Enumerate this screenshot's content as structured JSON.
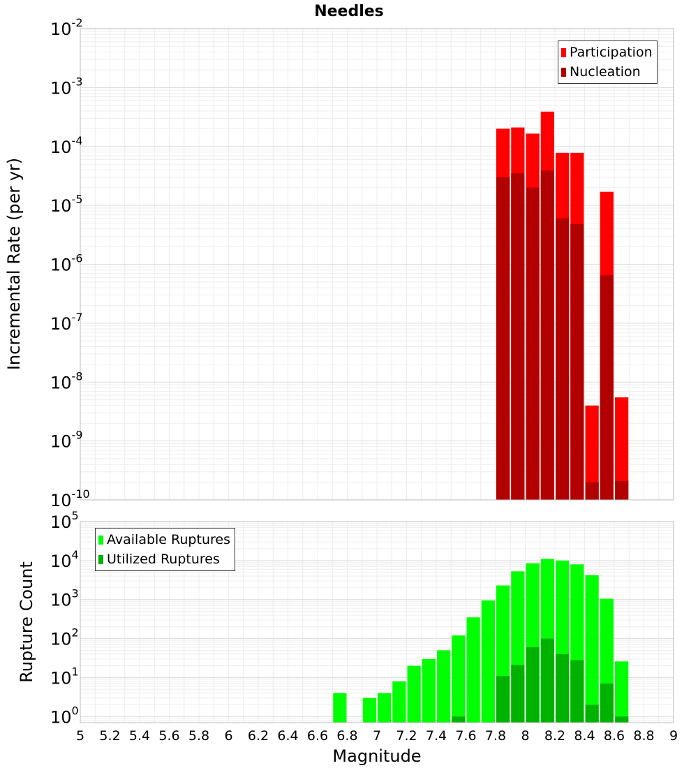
{
  "chart_data": [
    {
      "type": "bar",
      "title": "Needles",
      "ylabel": "Incremental Rate (per yr)",
      "xlabel": "",
      "xlim": [
        5,
        9
      ],
      "ylim": [
        1e-10,
        0.01
      ],
      "yscale": "log",
      "grid": true,
      "legend_position": "top-right",
      "bin_width": 0.1,
      "x": [
        7.85,
        7.95,
        8.05,
        8.15,
        8.25,
        8.35,
        8.45,
        8.55,
        8.65
      ],
      "series": [
        {
          "name": "Participation",
          "color": "#ff0000",
          "values": [
            0.0002,
            0.00021,
            0.000165,
            0.00039,
            7.8e-05,
            7.8e-05,
            4e-09,
            1.7e-05,
            5.5e-09
          ]
        },
        {
          "name": "Nucleation",
          "color": "#b20000",
          "values": [
            3e-05,
            3.5e-05,
            2e-05,
            3.9e-05,
            6e-06,
            4.8e-06,
            2e-10,
            6.5e-07,
            2.1e-10
          ]
        }
      ],
      "yticks": [
        {
          "label": "10",
          "exp": "-2"
        },
        {
          "label": "10",
          "exp": "-3"
        },
        {
          "label": "10",
          "exp": "-4"
        },
        {
          "label": "10",
          "exp": "-5"
        },
        {
          "label": "10",
          "exp": "-6"
        },
        {
          "label": "10",
          "exp": "-7"
        },
        {
          "label": "10",
          "exp": "-8"
        },
        {
          "label": "10",
          "exp": "-9"
        },
        {
          "label": "10",
          "exp": "-10"
        }
      ]
    },
    {
      "type": "bar",
      "title": "",
      "ylabel": "Rupture Count",
      "xlabel": "Magnitude",
      "xlim": [
        5,
        9
      ],
      "ylim": [
        0.7,
        100000.0
      ],
      "yscale": "log",
      "grid": true,
      "legend_position": "top-left",
      "bin_width": 0.1,
      "x": [
        6.75,
        6.95,
        7.05,
        7.15,
        7.25,
        7.35,
        7.45,
        7.55,
        7.65,
        7.75,
        7.85,
        7.95,
        8.05,
        8.15,
        8.25,
        8.35,
        8.45,
        8.55,
        8.65
      ],
      "series": [
        {
          "name": "Available Ruptures",
          "color": "#00ff00",
          "values": [
            4,
            3,
            4,
            8,
            20,
            30,
            50,
            120,
            350,
            950,
            2300,
            5300,
            8500,
            11000,
            10000,
            8000,
            4200,
            1050,
            26
          ]
        },
        {
          "name": "Utilized Ruptures",
          "color": "#00b200",
          "values": [
            0,
            0,
            0,
            0,
            0,
            0,
            0,
            1,
            0,
            0,
            11,
            21,
            60,
            100,
            40,
            28,
            2,
            7,
            1
          ]
        }
      ],
      "xticks": [
        "5",
        "5.2",
        "5.4",
        "5.6",
        "5.8",
        "6",
        "6.2",
        "6.4",
        "6.6",
        "6.8",
        "7",
        "7.2",
        "7.4",
        "7.6",
        "7.8",
        "8",
        "8.2",
        "8.4",
        "8.6",
        "8.8",
        "9"
      ],
      "yticks": [
        {
          "label": "10",
          "exp": "5"
        },
        {
          "label": "10",
          "exp": "4"
        },
        {
          "label": "10",
          "exp": "3"
        },
        {
          "label": "10",
          "exp": "2"
        },
        {
          "label": "10",
          "exp": "1"
        },
        {
          "label": "10",
          "exp": "0"
        }
      ]
    }
  ]
}
